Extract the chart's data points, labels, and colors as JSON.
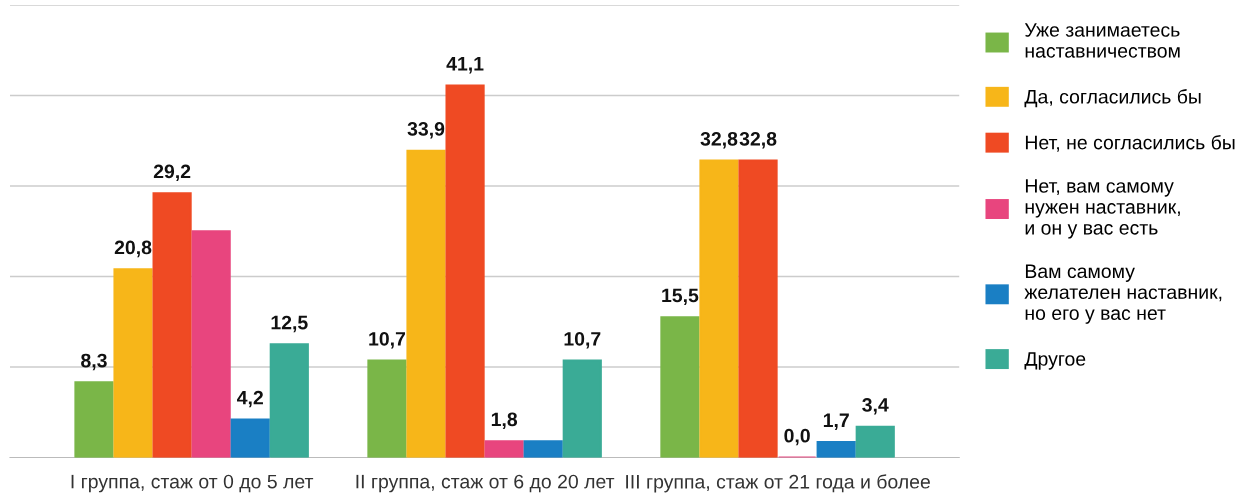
{
  "chart_data": {
    "type": "bar",
    "categories": [
      "I группа, стаж от 0 до 5 лет",
      "II группа, стаж от 6 до 20 лет",
      "III группа, стаж от 21 года и более"
    ],
    "series": [
      {
        "name": "Уже занимаетесь\nнаставничеством",
        "color": "#7ab648",
        "values": [
          8.3,
          10.7,
          15.5
        ],
        "value_labels": [
          "8,3",
          "10,7",
          "15,5"
        ]
      },
      {
        "name": "Да, согласились бы",
        "color": "#f7b619",
        "values": [
          20.8,
          33.9,
          32.8
        ],
        "value_labels": [
          "20,8",
          "33,9",
          "32,8"
        ]
      },
      {
        "name": "Нет, не согласились бы",
        "color": "#ef4a23",
        "values": [
          29.2,
          41.1,
          32.8
        ],
        "value_labels": [
          "29,2",
          "41,1",
          "32,8"
        ]
      },
      {
        "name": "Нет, вам самому\nнужен наставник,\nи он у вас есть",
        "color": "#e8457e",
        "values": [
          25.0,
          1.8,
          0.0
        ],
        "value_labels": [
          null,
          "1,8",
          "0,0"
        ]
      },
      {
        "name": "Вам самому\nжелателен наставник,\nно его у вас нет",
        "color": "#1a7fc4",
        "values": [
          4.2,
          1.8,
          1.7
        ],
        "value_labels": [
          "4,2",
          null,
          "1,7"
        ]
      },
      {
        "name": "Другое",
        "color": "#3aab96",
        "values": [
          12.5,
          10.7,
          3.4
        ],
        "value_labels": [
          "12,5",
          "10,7",
          "3,4"
        ]
      }
    ],
    "ylim": [
      0,
      50
    ],
    "yticks": [
      {
        "value": 10,
        "label": null
      },
      {
        "value": 20,
        "label": null
      },
      {
        "value": 30,
        "label": null
      },
      {
        "value": 40,
        "label": null
      },
      {
        "value": 50,
        "label": null
      }
    ],
    "tick_labels": "x",
    "grid": "y",
    "legend": "right"
  }
}
